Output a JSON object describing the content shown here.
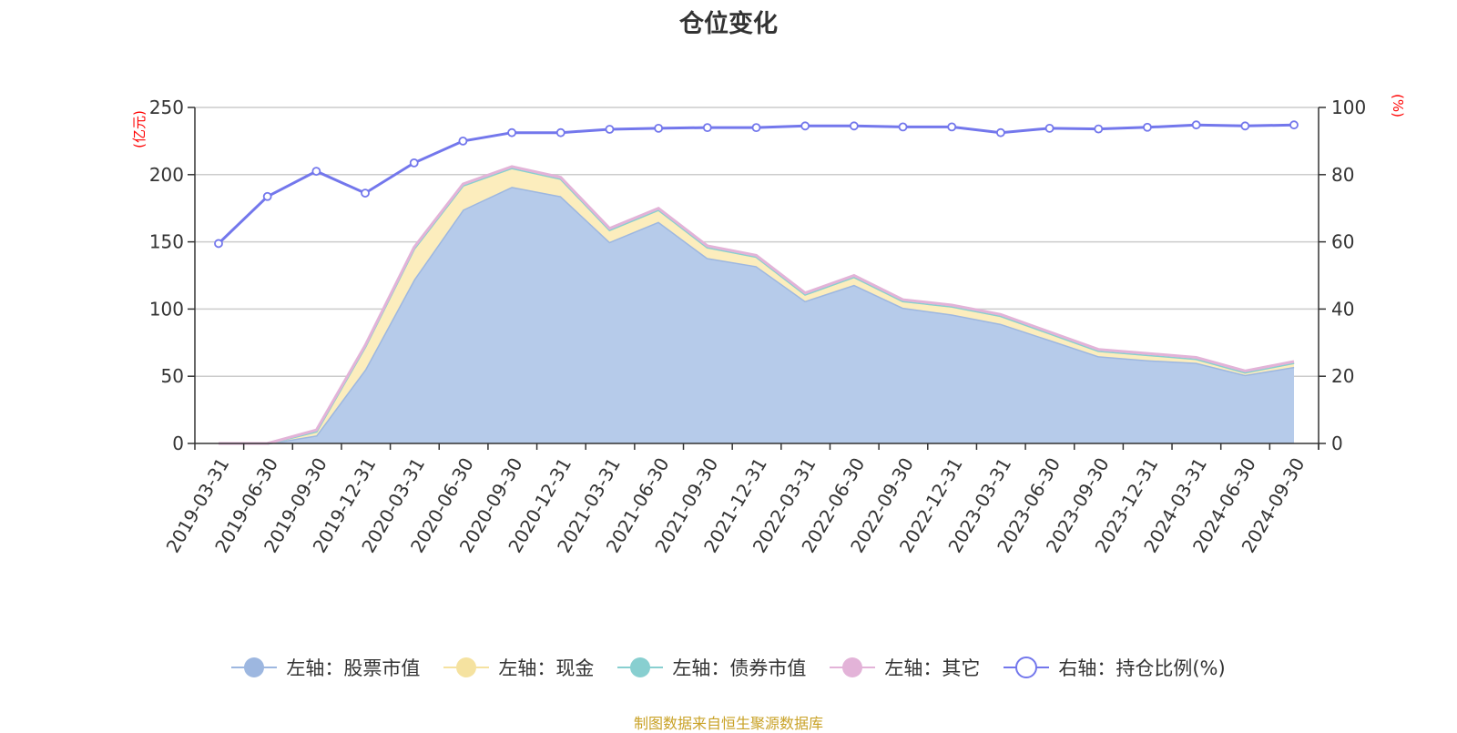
{
  "chart_data": {
    "type": "area",
    "title": "仓位变化",
    "left_axis_unit": "(亿元)",
    "right_axis_unit": "(%)",
    "ylim_left": [
      0,
      250
    ],
    "ylim_right": [
      0,
      100
    ],
    "left_ticks": [
      "0",
      "50",
      "100",
      "150",
      "200",
      "250"
    ],
    "right_ticks": [
      "0",
      "20",
      "40",
      "60",
      "80",
      "100"
    ],
    "grid": true,
    "legend_position": "bottom",
    "categories": [
      "2019-03-31",
      "2019-06-30",
      "2019-09-30",
      "2019-12-31",
      "2020-03-31",
      "2020-06-30",
      "2020-09-30",
      "2020-12-31",
      "2021-03-31",
      "2021-06-30",
      "2021-09-30",
      "2021-12-31",
      "2022-03-31",
      "2022-06-30",
      "2022-09-30",
      "2022-12-31",
      "2023-03-31",
      "2023-06-30",
      "2023-09-30",
      "2023-12-31",
      "2024-03-31",
      "2024-06-30",
      "2024-09-30"
    ],
    "stacked_series": [
      {
        "name": "左轴：股票市值",
        "color": "#9db7e0",
        "fill": "#b6cbea",
        "values": [
          0,
          0,
          6,
          55,
          122,
          174,
          191,
          184,
          150,
          165,
          138,
          132,
          106,
          118,
          101,
          96,
          89,
          77,
          65,
          62,
          60,
          51,
          57
        ]
      },
      {
        "name": "左轴：现金",
        "color": "#f5e2a0",
        "fill": "#fcedbd",
        "values": [
          0,
          0,
          3,
          17,
          23,
          18,
          14,
          13,
          9,
          9,
          8,
          7,
          5,
          6,
          5,
          6,
          6,
          5,
          4,
          4,
          3,
          2,
          3
        ]
      },
      {
        "name": "左轴：债券市值",
        "color": "#88cfd0",
        "fill": "#a8dcdc",
        "values": [
          0,
          0,
          0,
          0,
          0,
          0,
          0,
          0,
          0,
          0,
          0,
          0,
          0,
          0,
          0,
          0,
          0,
          0,
          0,
          0,
          0,
          0,
          0
        ]
      },
      {
        "name": "左轴：其它",
        "color": "#e3b3d8",
        "fill": "#efc9e5",
        "values": [
          0,
          0,
          1,
          1,
          1,
          1,
          1,
          1,
          1,
          1,
          1,
          1,
          1,
          1,
          1,
          1,
          1,
          1,
          1,
          1,
          1,
          1,
          1
        ]
      }
    ],
    "line_series": {
      "name": "右轴：持仓比例(%)",
      "color": "#7377ec",
      "values": [
        59.5,
        73.5,
        81,
        74.5,
        83.5,
        90,
        92.5,
        92.5,
        93.5,
        93.8,
        94,
        94,
        94.5,
        94.5,
        94.2,
        94.2,
        92.5,
        93.8,
        93.6,
        94.1,
        94.8,
        94.5,
        94.8
      ]
    }
  },
  "source_note": "制图数据来自恒生聚源数据库"
}
